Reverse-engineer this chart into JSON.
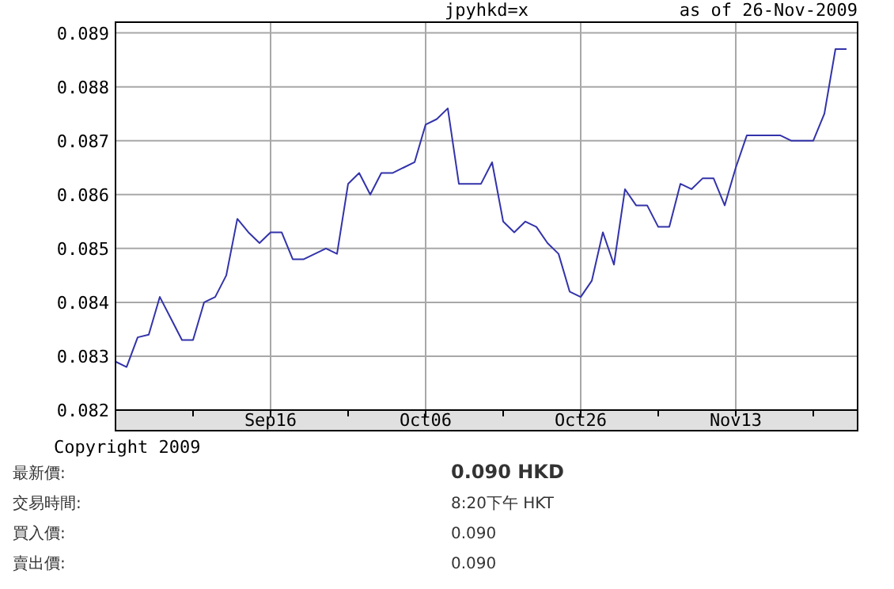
{
  "chart_data": {
    "type": "line",
    "title": "jpyhkd=x",
    "subtitle": "as of 26-Nov-2009",
    "categories": [
      null,
      null,
      null,
      null,
      null,
      null,
      null,
      null,
      null,
      null,
      null,
      null,
      null,
      null,
      "Sep16",
      null,
      null,
      null,
      null,
      null,
      null,
      null,
      null,
      null,
      null,
      null,
      null,
      null,
      "Oct06",
      null,
      null,
      null,
      null,
      null,
      null,
      null,
      null,
      null,
      null,
      null,
      null,
      null,
      "Oct26",
      null,
      null,
      null,
      null,
      null,
      null,
      null,
      null,
      null,
      null,
      null,
      null,
      null,
      "Nov13",
      null,
      null,
      null,
      null,
      null,
      null,
      null,
      null,
      null,
      null,
      null
    ],
    "series": [
      {
        "color": "#3333aa",
        "values": [
          0.0829,
          0.0828,
          0.08335,
          0.0834,
          0.0841,
          0.0837,
          0.0833,
          0.0833,
          0.084,
          0.0841,
          0.0845,
          0.08555,
          0.0853,
          0.0851,
          0.0853,
          0.0853,
          0.0848,
          0.0848,
          0.0849,
          0.085,
          0.0849,
          0.0862,
          0.0864,
          0.086,
          0.0864,
          0.0864,
          0.0865,
          0.0866,
          0.0873,
          0.0874,
          0.0876,
          0.0862,
          0.0862,
          0.0862,
          0.0866,
          0.0855,
          0.0853,
          0.0855,
          0.0854,
          0.0851,
          0.0849,
          0.0842,
          0.0841,
          0.0844,
          0.0853,
          0.0847,
          0.0861,
          0.0858,
          0.0858,
          0.0854,
          0.0854,
          0.0862,
          0.0861,
          0.0863,
          0.0863,
          0.0858,
          0.0865,
          0.0871,
          0.0871,
          0.0871,
          0.0871,
          0.087,
          0.087,
          0.087,
          0.0875,
          0.0887,
          0.0887,
          null
        ]
      }
    ],
    "ylim": [
      0.082,
      0.0892
    ],
    "yticks": [
      0.082,
      0.083,
      0.084,
      0.085,
      0.086,
      0.087,
      0.088,
      0.089
    ],
    "grid": true,
    "marker": "none",
    "line_style": "solid",
    "annotations": [
      "Copyright 2009",
      "最新價:",
      "0.090 HKD",
      "交易時間:",
      "8:20下午 HKT",
      "買入價:",
      "0.090",
      "賣出價:",
      "0.090"
    ]
  }
}
